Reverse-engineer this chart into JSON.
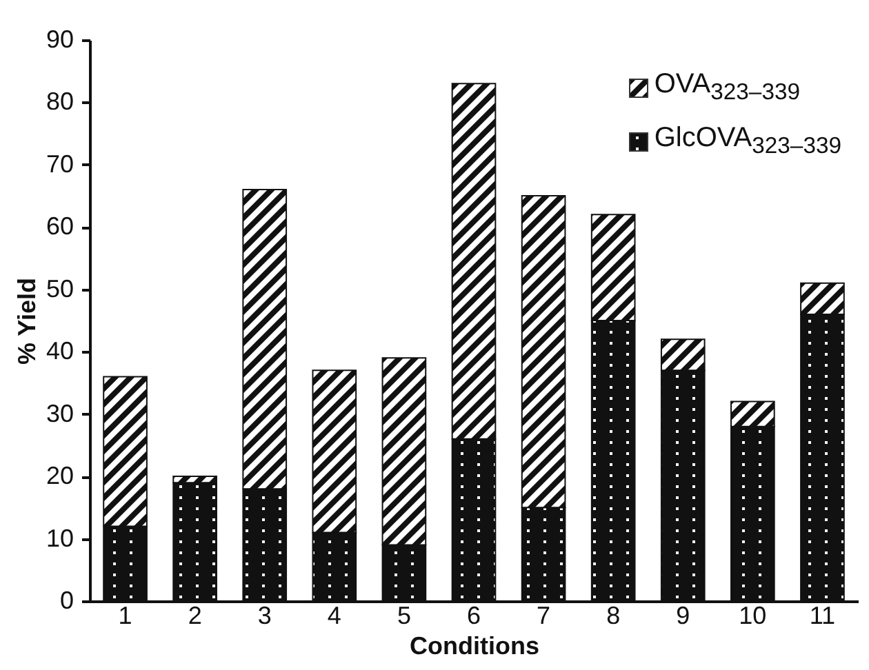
{
  "chart_data": {
    "type": "bar",
    "stacked": true,
    "xlabel": "Conditions",
    "ylabel": "% Yield",
    "categories": [
      "1",
      "2",
      "3",
      "4",
      "5",
      "6",
      "7",
      "8",
      "9",
      "10",
      "11"
    ],
    "series": [
      {
        "name": "GlcOVA$_{323–339}$",
        "color": "#111111",
        "values": [
          12,
          19,
          18,
          11,
          9,
          26,
          15,
          45,
          37,
          28,
          46
        ]
      },
      {
        "name": "OVA$_{323–339}$",
        "color": "#111111",
        "values": [
          24,
          1,
          48,
          26,
          30,
          57,
          50,
          17,
          5,
          4,
          5
        ]
      }
    ],
    "ylim": [
      0,
      90
    ],
    "yticks": [
      0,
      10,
      20,
      30,
      40,
      50,
      60,
      70,
      80,
      90
    ],
    "grid": false,
    "legend": "top right"
  }
}
